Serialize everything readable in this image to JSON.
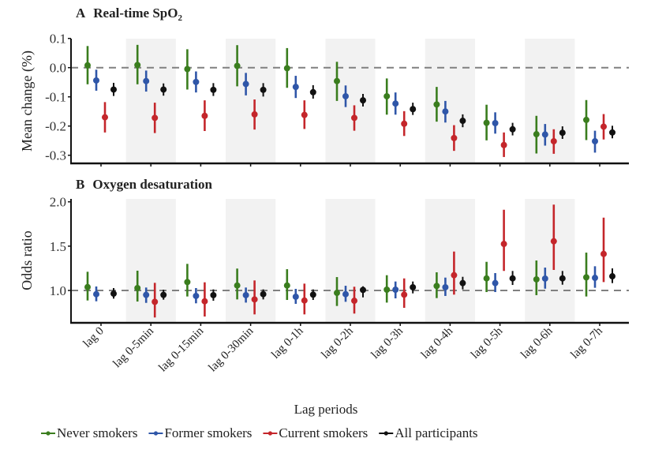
{
  "chart_data": [
    {
      "type": "scatter",
      "subtype": "point-range",
      "panel_letter": "A",
      "title": "Real-time SpO",
      "title_subscript": "2",
      "ylabel": "Mean change (%)",
      "xlabel": "",
      "ylim": [
        -0.33,
        0.11
      ],
      "yticks": [
        0.1,
        0.0,
        -0.1,
        -0.2,
        -0.3
      ],
      "ytick_labels": [
        "0.1",
        "0.0",
        "-0.1",
        "-0.2",
        "-0.3"
      ],
      "reference_line": 0.0,
      "shaded_categories": [
        1,
        3,
        5,
        7,
        9
      ],
      "categories": [
        "lag 0",
        "lag 0-5min",
        "lag 0-15min",
        "lag 0-30min",
        "lag 0-1h",
        "lag 0-2h",
        "lag 0-3h",
        "lag 0-4h",
        "lag 0-5h",
        "lag 0-6h",
        "lag 0-7h"
      ],
      "series": [
        {
          "name": "Never smokers",
          "color": "#3a7d1e",
          "values": [
            0.008,
            0.009,
            -0.005,
            0.006,
            -0.002,
            -0.046,
            -0.098,
            -0.126,
            -0.189,
            -0.228,
            -0.179
          ],
          "lower": [
            -0.057,
            -0.057,
            -0.075,
            -0.064,
            -0.069,
            -0.114,
            -0.161,
            -0.185,
            -0.249,
            -0.294,
            -0.248
          ],
          "upper": [
            0.074,
            0.078,
            0.063,
            0.077,
            0.067,
            0.02,
            -0.037,
            -0.066,
            -0.127,
            -0.165,
            -0.111
          ]
        },
        {
          "name": "Former smokers",
          "color": "#2f56a8",
          "values": [
            -0.044,
            -0.046,
            -0.049,
            -0.056,
            -0.066,
            -0.098,
            -0.123,
            -0.15,
            -0.19,
            -0.229,
            -0.252
          ],
          "lower": [
            -0.079,
            -0.082,
            -0.085,
            -0.095,
            -0.104,
            -0.135,
            -0.161,
            -0.188,
            -0.226,
            -0.267,
            -0.291
          ],
          "upper": [
            -0.007,
            -0.01,
            -0.013,
            -0.018,
            -0.028,
            -0.061,
            -0.085,
            -0.114,
            -0.153,
            -0.193,
            -0.216
          ]
        },
        {
          "name": "Current smokers",
          "color": "#c4262b",
          "values": [
            -0.17,
            -0.172,
            -0.165,
            -0.16,
            -0.162,
            -0.172,
            -0.192,
            -0.241,
            -0.265,
            -0.252,
            -0.202
          ],
          "lower": [
            -0.222,
            -0.224,
            -0.217,
            -0.212,
            -0.21,
            -0.216,
            -0.234,
            -0.285,
            -0.306,
            -0.295,
            -0.246
          ],
          "upper": [
            -0.118,
            -0.12,
            -0.112,
            -0.109,
            -0.112,
            -0.129,
            -0.149,
            -0.197,
            -0.222,
            -0.211,
            -0.159
          ]
        },
        {
          "name": "All participants",
          "color": "#111111",
          "values": [
            -0.075,
            -0.075,
            -0.076,
            -0.076,
            -0.084,
            -0.112,
            -0.142,
            -0.182,
            -0.211,
            -0.223,
            -0.222
          ],
          "lower": [
            -0.097,
            -0.096,
            -0.097,
            -0.099,
            -0.106,
            -0.133,
            -0.162,
            -0.204,
            -0.232,
            -0.244,
            -0.242
          ],
          "upper": [
            -0.052,
            -0.054,
            -0.053,
            -0.053,
            -0.06,
            -0.09,
            -0.12,
            -0.16,
            -0.189,
            -0.201,
            -0.199
          ]
        }
      ]
    },
    {
      "type": "scatter",
      "subtype": "point-range",
      "panel_letter": "B",
      "title": "Oxygen desaturation",
      "title_subscript": "",
      "ylabel": "Odds ratio",
      "xlabel": "Lag periods",
      "ylim": [
        0.64,
        2.03
      ],
      "yticks": [
        2.0,
        1.5,
        1.0
      ],
      "ytick_labels": [
        "2.0",
        "1.5",
        "1.0"
      ],
      "reference_line": 1.0,
      "shaded_categories": [
        1,
        3,
        5,
        7,
        9
      ],
      "categories": [
        "lag 0",
        "lag 0-5min",
        "lag 0-15min",
        "lag 0-30min",
        "lag 0-1h",
        "lag 0-2h",
        "lag 0-3h",
        "lag 0-4h",
        "lag 0-5h",
        "lag 0-6h",
        "lag 0-7h"
      ],
      "series": [
        {
          "name": "Never smokers",
          "color": "#3a7d1e",
          "values": [
            1.038,
            1.027,
            1.095,
            1.056,
            1.056,
            0.973,
            1.009,
            1.051,
            1.136,
            1.125,
            1.148
          ],
          "lower": [
            0.887,
            0.875,
            0.932,
            0.899,
            0.893,
            0.825,
            0.863,
            0.914,
            0.982,
            0.947,
            0.932
          ],
          "upper": [
            1.211,
            1.223,
            1.3,
            1.247,
            1.24,
            1.151,
            1.172,
            1.205,
            1.323,
            1.338,
            1.427
          ]
        },
        {
          "name": "Former smokers",
          "color": "#2f56a8",
          "values": [
            0.958,
            0.95,
            0.938,
            0.947,
            0.929,
            0.958,
            1.009,
            1.036,
            1.083,
            1.134,
            1.142
          ],
          "lower": [
            0.878,
            0.86,
            0.855,
            0.863,
            0.849,
            0.872,
            0.911,
            0.938,
            0.982,
            1.02,
            1.03
          ],
          "upper": [
            1.045,
            1.033,
            1.027,
            1.033,
            1.018,
            1.053,
            1.101,
            1.145,
            1.196,
            1.258,
            1.273
          ]
        },
        {
          "name": "Current smokers",
          "color": "#c4262b",
          "values": [
            null,
            0.872,
            0.878,
            0.899,
            0.887,
            0.884,
            0.953,
            1.172,
            1.525,
            1.555,
            1.412
          ],
          "lower": [
            null,
            0.695,
            0.706,
            0.73,
            0.73,
            0.739,
            0.804,
            0.953,
            1.22,
            1.232,
            1.095
          ],
          "upper": [
            null,
            1.086,
            1.092,
            1.113,
            1.077,
            1.042,
            1.136,
            1.439,
            1.911,
            1.968,
            1.822
          ]
        },
        {
          "name": "All participants",
          "color": "#111111",
          "values": [
            0.964,
            0.95,
            0.947,
            0.958,
            0.953,
            1.006,
            1.036,
            1.083,
            1.136,
            1.136,
            1.16
          ],
          "lower": [
            0.908,
            0.896,
            0.884,
            0.899,
            0.893,
            0.922,
            0.967,
            1.012,
            1.062,
            1.065,
            1.083
          ],
          "upper": [
            1.027,
            1.009,
            1.012,
            1.012,
            1.012,
            1.047,
            1.101,
            1.154,
            1.22,
            1.22,
            1.249
          ]
        }
      ]
    }
  ],
  "figure": {
    "xlabel": "Lag periods",
    "legend_position": "bottom",
    "legend": [
      {
        "label": "Never smokers",
        "color": "#3a7d1e"
      },
      {
        "label": "Former smokers",
        "color": "#2f56a8"
      },
      {
        "label": "Current smokers",
        "color": "#c4262b"
      },
      {
        "label": "All participants",
        "color": "#111111"
      }
    ],
    "shade_color": "#f2f2f2",
    "reference_line_color": "#808080"
  }
}
